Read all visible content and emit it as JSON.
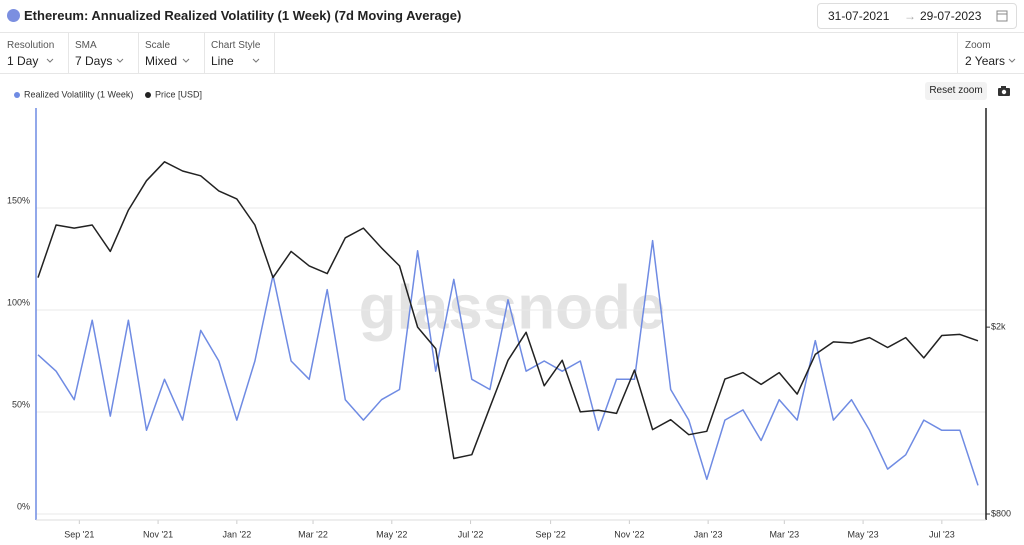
{
  "ui": {
    "title": "Ethereum: Annualized Realized Volatility (1 Week) (7d Moving Average)",
    "date_from": "31-07-2021",
    "date_to": "29-07-2023",
    "controls": [
      {
        "label": "Resolution",
        "value": "1 Day"
      },
      {
        "label": "SMA",
        "value": "7 Days"
      },
      {
        "label": "Scale",
        "value": "Mixed"
      },
      {
        "label": "Chart Style",
        "value": "Line"
      }
    ],
    "zoom": {
      "label": "Zoom",
      "value": "2 Years"
    },
    "reset": "Reset zoom",
    "watermark": "glassnode"
  },
  "chart_data": {
    "type": "line",
    "x": [
      "2021-07-31",
      "2021-08-14",
      "2021-08-28",
      "2021-09-11",
      "2021-09-25",
      "2021-10-09",
      "2021-10-23",
      "2021-11-06",
      "2021-11-20",
      "2021-12-04",
      "2021-12-18",
      "2022-01-01",
      "2022-01-15",
      "2022-01-29",
      "2022-02-12",
      "2022-02-26",
      "2022-03-12",
      "2022-03-26",
      "2022-04-09",
      "2022-04-23",
      "2022-05-07",
      "2022-05-21",
      "2022-06-04",
      "2022-06-18",
      "2022-07-02",
      "2022-07-16",
      "2022-07-30",
      "2022-08-13",
      "2022-08-27",
      "2022-09-10",
      "2022-09-24",
      "2022-10-08",
      "2022-10-22",
      "2022-11-05",
      "2022-11-19",
      "2022-12-03",
      "2022-12-17",
      "2022-12-31",
      "2023-01-14",
      "2023-01-28",
      "2023-02-11",
      "2023-02-25",
      "2023-03-11",
      "2023-03-25",
      "2023-04-08",
      "2023-04-22",
      "2023-05-06",
      "2023-05-20",
      "2023-06-03",
      "2023-06-17",
      "2023-07-01",
      "2023-07-15",
      "2023-07-29"
    ],
    "xlim": [
      "2021-07-31",
      "2023-07-29"
    ],
    "xticks": [
      {
        "value": "2021-09-01",
        "label": "Sep '21"
      },
      {
        "value": "2021-11-01",
        "label": "Nov '21"
      },
      {
        "value": "2022-01-01",
        "label": "Jan '22"
      },
      {
        "value": "2022-03-01",
        "label": "Mar '22"
      },
      {
        "value": "2022-05-01",
        "label": "May '22"
      },
      {
        "value": "2022-07-01",
        "label": "Jul '22"
      },
      {
        "value": "2022-09-01",
        "label": "Sep '22"
      },
      {
        "value": "2022-11-01",
        "label": "Nov '22"
      },
      {
        "value": "2023-01-01",
        "label": "Jan '23"
      },
      {
        "value": "2023-03-01",
        "label": "Mar '23"
      },
      {
        "value": "2023-05-01",
        "label": "May '23"
      },
      {
        "value": "2023-07-01",
        "label": "Jul '23"
      }
    ],
    "ylim": [
      0,
      198
    ],
    "yticks": [
      {
        "value": 0,
        "label": "0%"
      },
      {
        "value": 50,
        "label": "50%"
      },
      {
        "value": 100,
        "label": "100%"
      },
      {
        "value": 150,
        "label": "150%"
      }
    ],
    "y2lim": [
      800,
      5800
    ],
    "y2log": true,
    "y2ticks": [
      {
        "value": 800,
        "label": "$800"
      },
      {
        "value": 2000,
        "label": "$2k"
      }
    ],
    "grid": true,
    "series": [
      {
        "name": "Realized Volatility (1 Week)",
        "color": "#6f8be3",
        "values": [
          78,
          70,
          56,
          95,
          48,
          95,
          41,
          66,
          46,
          90,
          75,
          46,
          75,
          117,
          75,
          66,
          110,
          56,
          46,
          56,
          61,
          129,
          70,
          115,
          66,
          61,
          105,
          70,
          75,
          70,
          75,
          41,
          66,
          66,
          134,
          61,
          46,
          17,
          46,
          51,
          36,
          56,
          46,
          85,
          46,
          56,
          41,
          22,
          29,
          46,
          41,
          41,
          14
        ]
      },
      {
        "name": "Price [USD]",
        "color": "#222222",
        "axis": "y2",
        "values": [
          2550,
          3300,
          3250,
          3300,
          2900,
          3550,
          4100,
          4500,
          4300,
          4200,
          3900,
          3750,
          3300,
          2550,
          2900,
          2700,
          2600,
          3100,
          3250,
          2950,
          2700,
          2000,
          1800,
          1050,
          1070,
          1350,
          1700,
          1950,
          1500,
          1700,
          1320,
          1330,
          1310,
          1620,
          1210,
          1270,
          1180,
          1200,
          1550,
          1600,
          1510,
          1600,
          1440,
          1750,
          1860,
          1850,
          1900,
          1810,
          1900,
          1720,
          1920,
          1930,
          1870
        ]
      }
    ]
  }
}
